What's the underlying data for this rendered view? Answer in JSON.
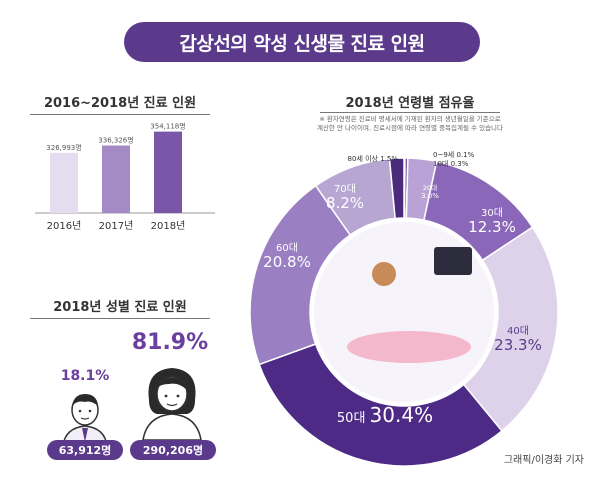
{
  "header": {
    "title": "갑상선의 악성 신생물 진료 인원"
  },
  "left_top": {
    "title": "2016~2018년 진료 인원"
  },
  "left_bottom": {
    "title": "2018년 성별 진료 인원"
  },
  "right": {
    "title": "2018년 연령별 점유율",
    "note_line1": "※ 환자연령은 진료비 명세서에 기재된 환자의 생년월일을 기준으로",
    "note_line2": "계산한 만 나이이며, 진료시점에 따라 연령별 중복집계될 수 있습니다"
  },
  "credit": "그래픽/이경화 기자",
  "colors": {
    "primary": "#5b3a8c",
    "accent": "#6a3fa0",
    "bar1": "#e4dcef",
    "bar2": "#a58bc6",
    "bar3": "#7a56a8"
  },
  "chart_data": [
    {
      "type": "bar",
      "title": "2016~2018년 진료 인원",
      "categories": [
        "2016년",
        "2017년",
        "2018년"
      ],
      "values": [
        326993,
        336326,
        354118
      ],
      "value_labels": [
        "326,993명",
        "336,326명",
        "354,118명"
      ],
      "ylim": [
        250000,
        360000
      ]
    },
    {
      "type": "bar",
      "title": "2018년 성별 진료 인원",
      "categories": [
        "남성",
        "여성"
      ],
      "values": [
        63912,
        290206
      ],
      "value_labels": [
        "63,912명",
        "290,206명"
      ],
      "percent_labels": [
        "18.1%",
        "81.9%"
      ],
      "icons": [
        "male-patient-icon",
        "female-patient-icon"
      ]
    },
    {
      "type": "pie",
      "title": "2018년 연령별 점유율",
      "slices": [
        {
          "label": "0~9세",
          "value": 0.1,
          "text": "0~9세 0.1%"
        },
        {
          "label": "10대",
          "value": 0.3,
          "text": "10대 0.3%"
        },
        {
          "label": "20대",
          "value": 3.0,
          "text": "3.0%"
        },
        {
          "label": "30대",
          "value": 12.3,
          "text": "12.3%"
        },
        {
          "label": "40대",
          "value": 23.3,
          "text": "23.3%"
        },
        {
          "label": "50대",
          "value": 30.4,
          "text": "30.4%"
        },
        {
          "label": "60대",
          "value": 20.8,
          "text": "20.8%"
        },
        {
          "label": "70대",
          "value": 8.2,
          "text": "8.2%"
        },
        {
          "label": "80세 이상",
          "value": 1.5,
          "text": "80세 이상 1.5%"
        }
      ],
      "slice_colors": [
        "#4a2a7a",
        "#6c4a9e",
        "#b9a3d6",
        "#8a67b8",
        "#ddd2ea",
        "#4d2a85",
        "#9a7fc2",
        "#b7a5d2",
        "#4a2a7a"
      ]
    }
  ]
}
